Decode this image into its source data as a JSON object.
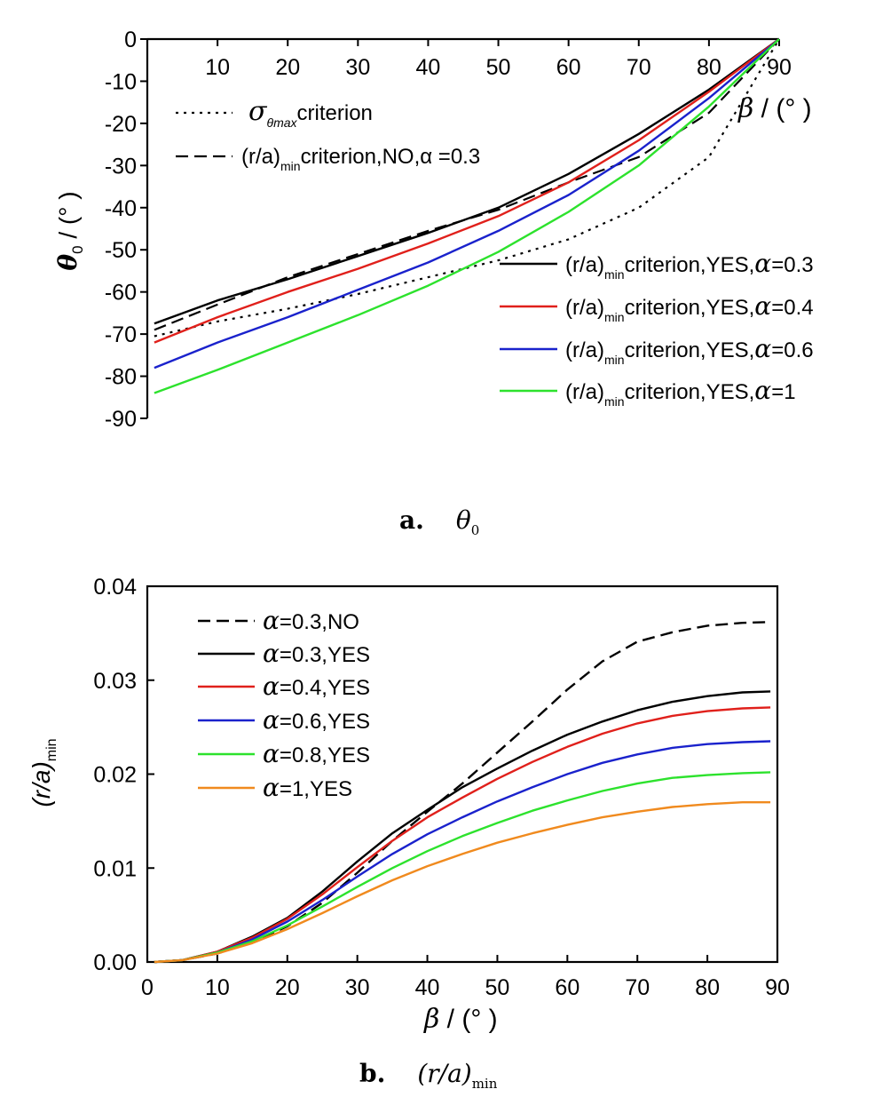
{
  "charts": [
    {
      "panel": "a",
      "caption_letter": "a.",
      "caption_symbol": "θ",
      "caption_sub": "0",
      "type": "line",
      "ylabel_sym": "θ",
      "ylabel_sub": "0",
      "ylabel_unit": " / (° )",
      "xlabel_sym": "β",
      "xlabel_unit": " / (° )",
      "xlim": [
        0,
        90
      ],
      "ylim": [
        -90,
        0
      ],
      "xticks": [
        "10",
        "20",
        "30",
        "40",
        "50",
        "60",
        "70",
        "80",
        "90"
      ],
      "yticks": [
        "0",
        "-10",
        "-20",
        "-30",
        "-40",
        "-50",
        "-60",
        "-70",
        "-80",
        "-90"
      ],
      "grid": false,
      "legend_top": [
        {
          "style": "dotted",
          "prefix": "σ",
          "sub": "θmax",
          "text": "criterion"
        },
        {
          "style": "dashed",
          "prefix": "(r/a)",
          "sub": "min",
          "text": "criterion,NO,α =0.3"
        }
      ],
      "legend_bottom": [
        {
          "color": "#000000",
          "prefix": "(r/a)",
          "sub": "min",
          "text": "criterion,YES,",
          "alpha": "α",
          "tail": "=0.3"
        },
        {
          "color": "#e0201b",
          "prefix": "(r/a)",
          "sub": "min",
          "text": "criterion,YES,",
          "alpha": "α",
          "tail": "=0.4"
        },
        {
          "color": "#1a22cc",
          "prefix": "(r/a)",
          "sub": "min",
          "text": "criterion,YES,",
          "alpha": "α",
          "tail": "=0.6"
        },
        {
          "color": "#2de22d",
          "prefix": "(r/a)",
          "sub": "min",
          "text": "criterion,YES,",
          "alpha": "α",
          "tail": "=1"
        }
      ],
      "chart_data": {
        "type": "line",
        "x": [
          1,
          10,
          20,
          30,
          40,
          50,
          60,
          70,
          80,
          90
        ],
        "series": [
          {
            "name": "σθmax criterion",
            "style": "dotted",
            "color": "#000000",
            "values": [
              -70.5,
              -67,
              -64,
              -60.5,
              -56.5,
              -52.5,
              -47.5,
              -40,
              -28,
              0
            ]
          },
          {
            "name": "(r/a)min criterion,NO,α =0.3",
            "style": "dashed",
            "color": "#000000",
            "values": [
              -69,
              -63,
              -56.5,
              -51,
              -45.5,
              -40.5,
              -34,
              -28,
              -17.5,
              0
            ]
          },
          {
            "name": "(r/a)min criterion,YES,α=0.3",
            "style": "solid",
            "color": "#000000",
            "values": [
              -67.5,
              -62,
              -57,
              -51.5,
              -46,
              -40,
              -32,
              -22.5,
              -12,
              0
            ]
          },
          {
            "name": "(r/a)min criterion,YES,α=0.4",
            "style": "solid",
            "color": "#e0201b",
            "values": [
              -72,
              -66,
              -60,
              -54.5,
              -48.5,
              -42,
              -34,
              -24,
              -12.5,
              0
            ]
          },
          {
            "name": "(r/a)min criterion,YES,α=0.6",
            "style": "solid",
            "color": "#1a22cc",
            "values": [
              -78,
              -72,
              -66,
              -59.5,
              -53,
              -45.5,
              -37,
              -26.5,
              -14,
              0
            ]
          },
          {
            "name": "(r/a)min criterion,YES,α=1",
            "style": "solid",
            "color": "#2de22d",
            "values": [
              -84,
              -78.5,
              -72,
              -65.5,
              -58.5,
              -50.5,
              -41,
              -30,
              -16,
              0
            ]
          }
        ]
      }
    },
    {
      "panel": "b",
      "caption_letter": "b.",
      "caption_symbol": "(r/a)",
      "caption_sub": "min",
      "type": "line",
      "ylabel_sym": "(r/a)",
      "ylabel_sub": "min",
      "xlabel_sym": "β",
      "xlabel_unit": " / (° )",
      "xlim": [
        0,
        90
      ],
      "ylim": [
        0,
        0.04
      ],
      "xticks": [
        "0",
        "10",
        "20",
        "30",
        "40",
        "50",
        "60",
        "70",
        "80",
        "90"
      ],
      "yticks": [
        "0.00",
        "0.01",
        "0.02",
        "0.03",
        "0.04"
      ],
      "grid": false,
      "legend": [
        {
          "style": "dashed",
          "color": "#000000",
          "alpha": "α",
          "tail": "=0.3,NO"
        },
        {
          "style": "solid",
          "color": "#000000",
          "alpha": "α",
          "tail": "=0.3,YES"
        },
        {
          "style": "solid",
          "color": "#e0201b",
          "alpha": "α",
          "tail": "=0.4,YES"
        },
        {
          "style": "solid",
          "color": "#1a22cc",
          "alpha": "α",
          "tail": "=0.6,YES"
        },
        {
          "style": "solid",
          "color": "#2de22d",
          "alpha": "α",
          "tail": "=0.8,YES"
        },
        {
          "style": "solid",
          "color": "#f08a1e",
          "alpha": "α",
          "tail": "=1,YES"
        }
      ],
      "chart_data": {
        "type": "line",
        "x": [
          1,
          5,
          10,
          15,
          20,
          25,
          30,
          35,
          40,
          45,
          50,
          55,
          60,
          65,
          70,
          75,
          80,
          85,
          89
        ],
        "series": [
          {
            "name": "α=0.3,NO",
            "style": "dashed",
            "color": "#000000",
            "values": [
              0,
              0.0002,
              0.0009,
              0.0021,
              0.0038,
              0.0063,
              0.0095,
              0.0129,
              0.016,
              0.019,
              0.0223,
              0.0256,
              0.029,
              0.032,
              0.0341,
              0.0351,
              0.0358,
              0.0361,
              0.0362
            ]
          },
          {
            "name": "α=0.3,YES",
            "style": "solid",
            "color": "#000000",
            "values": [
              0,
              0.0002,
              0.0011,
              0.0027,
              0.0047,
              0.0075,
              0.0107,
              0.0137,
              0.0162,
              0.0186,
              0.0206,
              0.0225,
              0.0242,
              0.0256,
              0.0268,
              0.0277,
              0.0283,
              0.0287,
              0.0288
            ]
          },
          {
            "name": "α=0.4,YES",
            "style": "solid",
            "color": "#e0201b",
            "values": [
              0,
              0.0002,
              0.0011,
              0.0026,
              0.0046,
              0.0072,
              0.0101,
              0.0129,
              0.0154,
              0.0175,
              0.0195,
              0.0213,
              0.0229,
              0.0243,
              0.0254,
              0.0262,
              0.0267,
              0.027,
              0.0271
            ]
          },
          {
            "name": "α=0.6,YES",
            "style": "solid",
            "color": "#1a22cc",
            "values": [
              0,
              0.0002,
              0.001,
              0.0024,
              0.0043,
              0.0066,
              0.0091,
              0.0115,
              0.0136,
              0.0154,
              0.0171,
              0.0186,
              0.02,
              0.0212,
              0.0221,
              0.0228,
              0.0232,
              0.0234,
              0.0235
            ]
          },
          {
            "name": "α=0.8,YES",
            "style": "solid",
            "color": "#2de22d",
            "values": [
              0,
              0.0002,
              0.001,
              0.0022,
              0.0039,
              0.0059,
              0.008,
              0.01,
              0.0118,
              0.0134,
              0.0148,
              0.0161,
              0.0172,
              0.0182,
              0.019,
              0.0196,
              0.0199,
              0.0201,
              0.0202
            ]
          },
          {
            "name": "α=1,YES",
            "style": "solid",
            "color": "#f08a1e",
            "values": [
              0,
              0.0002,
              0.0009,
              0.002,
              0.0035,
              0.0052,
              0.007,
              0.0087,
              0.0102,
              0.0115,
              0.0127,
              0.0137,
              0.0146,
              0.0154,
              0.016,
              0.0165,
              0.0168,
              0.017,
              0.017
            ]
          }
        ]
      }
    }
  ]
}
